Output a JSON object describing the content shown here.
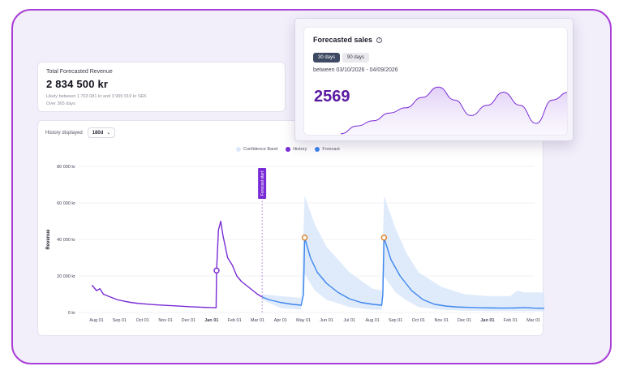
{
  "revenue_card": {
    "title": "Total Forecasted Revenue",
    "value": "2 834 500 kr",
    "range_text": "Likely between 1 703 081 kr and 3 965 919 kr SEK",
    "period_text": "Over 365 days"
  },
  "history": {
    "label": "History displayed",
    "selected": "180d"
  },
  "legend": [
    {
      "label": "Confidence Band",
      "color": "#dbe9fb"
    },
    {
      "label": "History",
      "color": "#7a2bd6"
    },
    {
      "label": "Forecast",
      "color": "#3d86ee"
    }
  ],
  "forecast_marker": "Forecast start",
  "colors": {
    "history": "#7a2bd6",
    "forecast": "#3d86ee",
    "band": "#dbe9fb",
    "peak": "#d9822b"
  },
  "chart_data": {
    "type": "line",
    "ylabel": "Revenue",
    "ylim": [
      0,
      80000
    ],
    "y_ticks": [
      0,
      20000,
      40000,
      60000,
      80000
    ],
    "y_tick_labels": [
      "0 kr",
      "20 000 kr",
      "40 000 kr",
      "60 000 kr",
      "80 000 kr"
    ],
    "x_ticks": [
      {
        "label": "Aug 01",
        "bold": false
      },
      {
        "label": "Sep 01",
        "bold": false
      },
      {
        "label": "Oct 01",
        "bold": false
      },
      {
        "label": "Nov 01",
        "bold": false
      },
      {
        "label": "Dec 01",
        "bold": false
      },
      {
        "label": "Jan 01",
        "bold": true
      },
      {
        "label": "Feb 01",
        "bold": false
      },
      {
        "label": "Mar 01",
        "bold": false
      },
      {
        "label": "Apr 01",
        "bold": false
      },
      {
        "label": "May 01",
        "bold": false
      },
      {
        "label": "Jun 01",
        "bold": false
      },
      {
        "label": "Jul 01",
        "bold": false
      },
      {
        "label": "Aug 01",
        "bold": false
      },
      {
        "label": "Sep 01",
        "bold": false
      },
      {
        "label": "Oct 01",
        "bold": false
      },
      {
        "label": "Nov 01",
        "bold": false
      },
      {
        "label": "Dec 01",
        "bold": false
      },
      {
        "label": "Jan 01",
        "bold": true
      },
      {
        "label": "Feb 01",
        "bold": false
      },
      {
        "label": "Mar 01",
        "bold": false
      }
    ],
    "series": [
      {
        "name": "History",
        "points": [
          [
            -0.2,
            15000
          ],
          [
            0,
            12000
          ],
          [
            0.15,
            13000
          ],
          [
            0.3,
            10000
          ],
          [
            0.5,
            9000
          ],
          [
            0.7,
            8000
          ],
          [
            0.9,
            7000
          ],
          [
            1.2,
            6200
          ],
          [
            1.5,
            5500
          ],
          [
            1.8,
            5000
          ],
          [
            2.2,
            4600
          ],
          [
            2.6,
            4200
          ],
          [
            3,
            3900
          ],
          [
            3.5,
            3600
          ],
          [
            4,
            3200
          ],
          [
            4.5,
            2900
          ],
          [
            5,
            2700
          ],
          [
            5.2,
            2600
          ],
          [
            5.22,
            23000
          ],
          [
            5.3,
            45000
          ],
          [
            5.4,
            50000
          ],
          [
            5.5,
            42000
          ],
          [
            5.6,
            36000
          ],
          [
            5.7,
            30000
          ],
          [
            5.9,
            26000
          ],
          [
            6.1,
            20000
          ],
          [
            6.3,
            17000
          ],
          [
            6.6,
            14000
          ],
          [
            6.8,
            12000
          ],
          [
            7,
            10000
          ],
          [
            7.2,
            8500
          ]
        ]
      },
      {
        "name": "Forecast",
        "points": [
          [
            7.2,
            8500
          ],
          [
            7.5,
            7000
          ],
          [
            8,
            5500
          ],
          [
            8.5,
            4500
          ],
          [
            8.9,
            4000
          ],
          [
            9.0,
            10000
          ],
          [
            9.05,
            41000
          ],
          [
            9.3,
            30000
          ],
          [
            9.6,
            22000
          ],
          [
            10,
            16000
          ],
          [
            10.5,
            11000
          ],
          [
            11,
            7500
          ],
          [
            11.5,
            5500
          ],
          [
            12,
            4500
          ],
          [
            12.4,
            4000
          ],
          [
            12.45,
            10000
          ],
          [
            12.5,
            41000
          ],
          [
            12.8,
            29000
          ],
          [
            13.2,
            20000
          ],
          [
            13.7,
            12000
          ],
          [
            14.2,
            7000
          ],
          [
            14.7,
            4500
          ],
          [
            15.2,
            3500
          ],
          [
            15.7,
            3000
          ],
          [
            16.2,
            2800
          ],
          [
            16.7,
            2600
          ],
          [
            17.2,
            2500
          ],
          [
            17.7,
            2400
          ],
          [
            18.2,
            2500
          ],
          [
            18.6,
            2700
          ],
          [
            19,
            2400
          ],
          [
            19.5,
            2300
          ],
          [
            19.9,
            2200
          ]
        ]
      },
      {
        "name": "Confidence Band",
        "upper": [
          [
            7.2,
            10000
          ],
          [
            8,
            9000
          ],
          [
            8.9,
            8000
          ],
          [
            9.05,
            64000
          ],
          [
            9.5,
            48000
          ],
          [
            10,
            36000
          ],
          [
            11,
            22000
          ],
          [
            12,
            13000
          ],
          [
            12.4,
            12000
          ],
          [
            12.5,
            64000
          ],
          [
            13,
            46000
          ],
          [
            13.5,
            32000
          ],
          [
            14,
            22000
          ],
          [
            15,
            14000
          ],
          [
            16,
            10000
          ],
          [
            17,
            9000
          ],
          [
            18,
            9000
          ],
          [
            18.3,
            12000
          ],
          [
            18.6,
            11000
          ],
          [
            19.9,
            11000
          ]
        ],
        "lower": [
          [
            7.2,
            7000
          ],
          [
            8,
            2500
          ],
          [
            8.9,
            1500
          ],
          [
            9.05,
            21000
          ],
          [
            9.5,
            12000
          ],
          [
            10,
            7000
          ],
          [
            11,
            3000
          ],
          [
            12,
            1500
          ],
          [
            12.4,
            1500
          ],
          [
            12.5,
            20000
          ],
          [
            13,
            11000
          ],
          [
            13.5,
            6500
          ],
          [
            14,
            3000
          ],
          [
            15,
            1500
          ],
          [
            16,
            1000
          ],
          [
            17,
            800
          ],
          [
            18,
            800
          ],
          [
            19.9,
            600
          ]
        ]
      }
    ],
    "highlights": [
      [
        5.22,
        23000
      ],
      [
        9.05,
        41000
      ],
      [
        12.5,
        41000
      ]
    ]
  },
  "popup": {
    "title": "Forecasted sales",
    "tabs": [
      "30 days",
      "90 days"
    ],
    "active_tab": "30 days",
    "range_text": "between 03/10/2026 - 04/09/2026",
    "value": "2569",
    "spark": [
      0.05,
      0.2,
      0.3,
      0.45,
      0.55,
      0.75,
      0.95,
      0.7,
      0.4,
      0.6,
      0.85,
      0.6,
      0.25,
      0.7,
      0.85
    ]
  }
}
